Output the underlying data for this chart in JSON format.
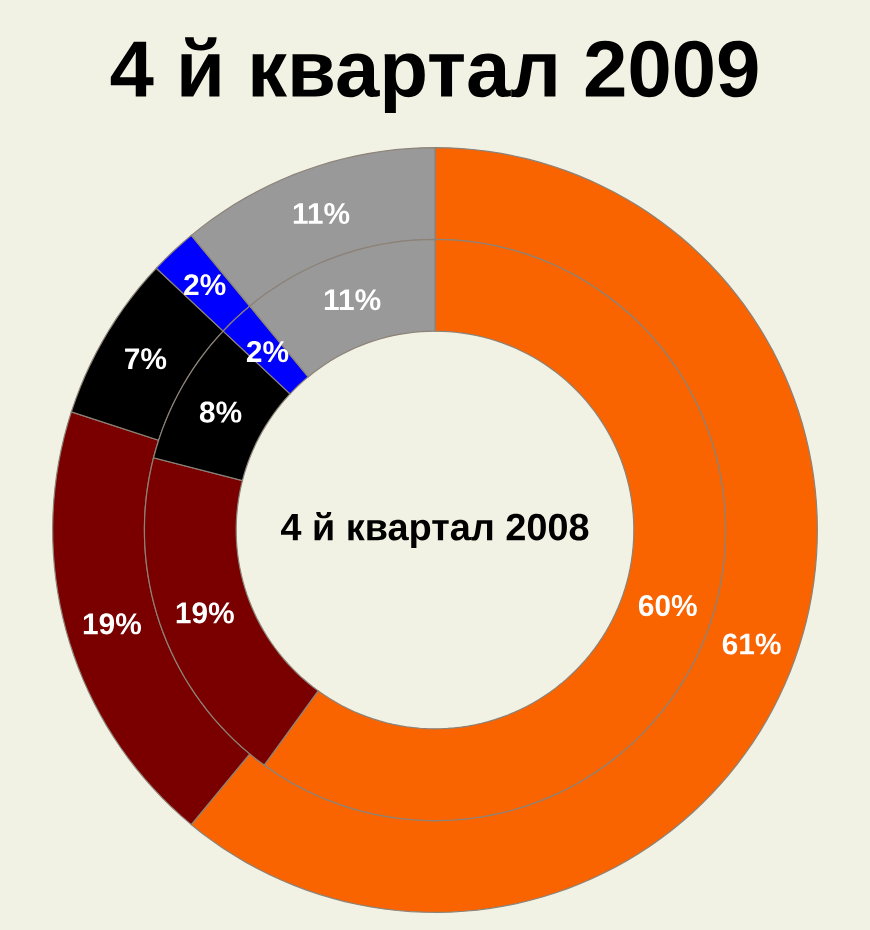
{
  "chart_data": {
    "type": "donut",
    "title": "4 й квартал 2009",
    "annotations": [
      "4 й квартал 2008"
    ],
    "categories": [
      null,
      null,
      null,
      null,
      null
    ],
    "colors": [
      "#f96400",
      "#7a0000",
      "#000000",
      "#0000ff",
      "#999999"
    ],
    "series": [
      {
        "values": [
          61,
          19,
          7,
          2,
          11
        ],
        "value_labels": [
          "61%",
          "19%",
          "7%",
          "2%",
          "11%"
        ]
      },
      {
        "values": [
          60,
          19,
          8,
          2,
          11
        ],
        "value_labels": [
          "60%",
          "19%",
          "8%",
          "2%",
          "11%"
        ]
      }
    ]
  }
}
